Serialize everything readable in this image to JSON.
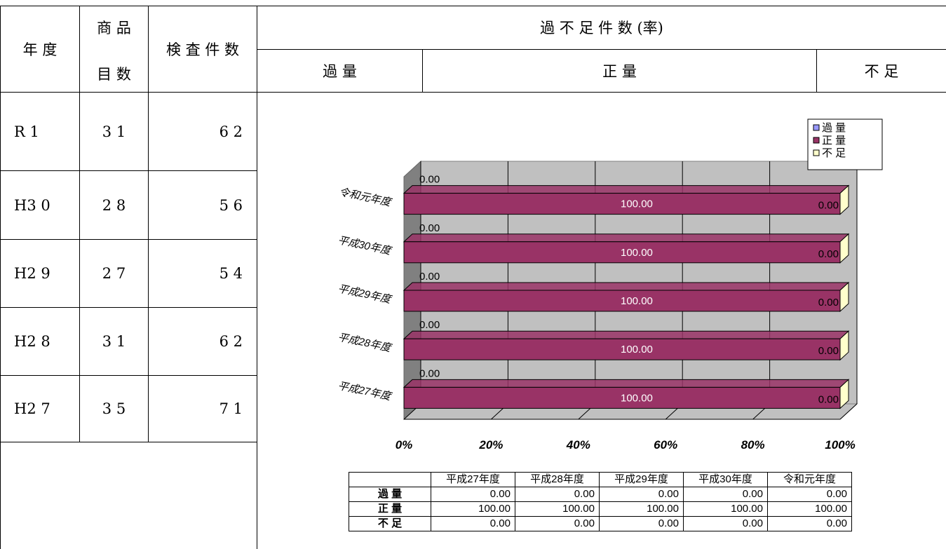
{
  "table": {
    "headers": {
      "year": "年 度",
      "items_top": "商 品",
      "items_bottom": "目 数",
      "inspections": "検 査 件 数",
      "ratio": "過 不 足 件 数 (率)",
      "over": "過 量",
      "proper": "正 量",
      "short": "不 足"
    },
    "rows": [
      {
        "year": "R 1",
        "items": "3 1",
        "inspections": "6 2"
      },
      {
        "year": "H3 0",
        "items": "2 8",
        "inspections": "5 6"
      },
      {
        "year": "H2 9",
        "items": "2 7",
        "inspections": "5 4"
      },
      {
        "year": "H2 8",
        "items": "3 1",
        "inspections": "6 2"
      },
      {
        "year": "H2 7",
        "items": "3 5",
        "inspections": "7 1"
      }
    ]
  },
  "chart_data": {
    "type": "bar",
    "orientation": "horizontal",
    "stacked": "percent",
    "categories": [
      "令和元年度",
      "平成30年度",
      "平成29年度",
      "平成28年度",
      "平成27年度"
    ],
    "series": [
      {
        "name": "過 量",
        "values": [
          0.0,
          0.0,
          0.0,
          0.0,
          0.0
        ],
        "labels": [
          "0.00",
          "0.00",
          "0.00",
          "0.00",
          "0.00"
        ],
        "color": "#9999FF"
      },
      {
        "name": "正 量",
        "values": [
          100.0,
          100.0,
          100.0,
          100.0,
          100.0
        ],
        "labels": [
          "100.00",
          "100.00",
          "100.00",
          "100.00",
          "100.00"
        ],
        "color": "#993366"
      },
      {
        "name": "不 足",
        "values": [
          0.0,
          0.0,
          0.0,
          0.0,
          0.0
        ],
        "labels": [
          "0.00",
          "0.00",
          "0.00",
          "0.00",
          "0.00"
        ],
        "color": "#FFFFCC"
      }
    ],
    "xticks": [
      "0%",
      "20%",
      "40%",
      "60%",
      "80%",
      "100%"
    ],
    "xlim": [
      0,
      100
    ],
    "legend": "top-right",
    "grid": true,
    "data_table": {
      "columns": [
        "平成27年度",
        "平成28年度",
        "平成29年度",
        "平成30年度",
        "令和元年度"
      ],
      "rows": [
        {
          "label": "過 量",
          "values": [
            "0.00",
            "0.00",
            "0.00",
            "0.00",
            "0.00"
          ]
        },
        {
          "label": "正 量",
          "values": [
            "100.00",
            "100.00",
            "100.00",
            "100.00",
            "100.00"
          ]
        },
        {
          "label": "不 足",
          "values": [
            "0.00",
            "0.00",
            "0.00",
            "0.00",
            "0.00"
          ]
        }
      ]
    }
  }
}
